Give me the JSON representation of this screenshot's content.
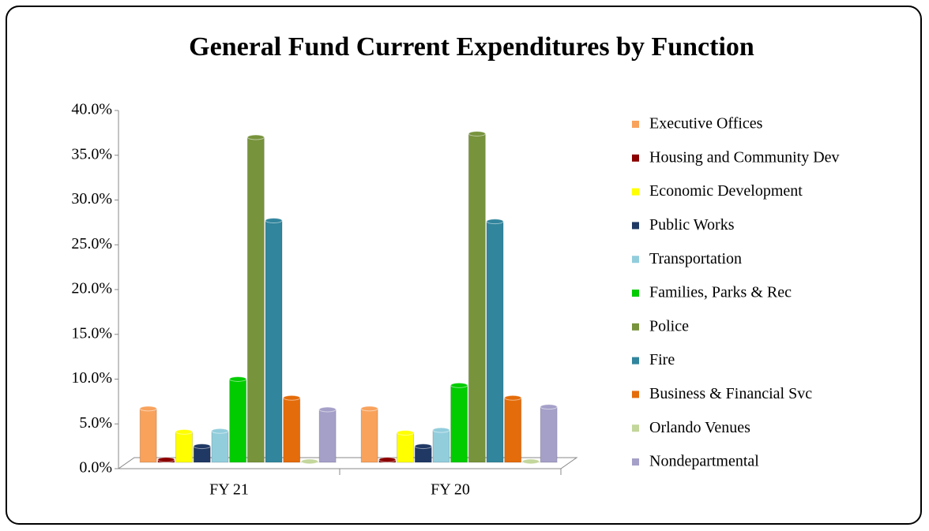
{
  "chart_data": {
    "type": "bar",
    "title": "General Fund Current Expenditures by Function",
    "categories": [
      "FY 21",
      "FY 20"
    ],
    "series": [
      {
        "name": "Executive Offices",
        "color": "#f8a25c",
        "values": [
          6.0,
          6.0
        ]
      },
      {
        "name": "Housing and Community Dev",
        "color": "#8b0000",
        "values": [
          0.3,
          0.3
        ]
      },
      {
        "name": "Economic Development",
        "color": "#ffff00",
        "values": [
          3.4,
          3.3
        ]
      },
      {
        "name": "Public Works",
        "color": "#1f3864",
        "values": [
          1.8,
          1.8
        ]
      },
      {
        "name": "Transportation",
        "color": "#92cddc",
        "values": [
          3.5,
          3.6
        ]
      },
      {
        "name": "Families, Parks & Rec",
        "color": "#00cc00",
        "values": [
          9.3,
          8.6
        ]
      },
      {
        "name": "Police",
        "color": "#77933c",
        "values": [
          36.3,
          36.7
        ]
      },
      {
        "name": "Fire",
        "color": "#31859c",
        "values": [
          27.0,
          26.9
        ]
      },
      {
        "name": "Business & Financial Svc",
        "color": "#e46c0a",
        "values": [
          7.2,
          7.2
        ]
      },
      {
        "name": "Orlando Venues",
        "color": "#c3d69b",
        "values": [
          0.1,
          0.1
        ]
      },
      {
        "name": "Nondepartmental",
        "color": "#a5a0c8",
        "values": [
          5.9,
          6.2
        ]
      }
    ],
    "ylim": [
      0,
      40
    ],
    "yticks": [
      {
        "value": 0,
        "label": "0.0%"
      },
      {
        "value": 5,
        "label": "5.0%"
      },
      {
        "value": 10,
        "label": "10.0%"
      },
      {
        "value": 15,
        "label": "15.0%"
      },
      {
        "value": 20,
        "label": "20.0%"
      },
      {
        "value": 25,
        "label": "25.0%"
      },
      {
        "value": 30,
        "label": "30.0%"
      },
      {
        "value": 35,
        "label": "35.0%"
      },
      {
        "value": 40,
        "label": "40.0%"
      }
    ],
    "legend": "right"
  }
}
